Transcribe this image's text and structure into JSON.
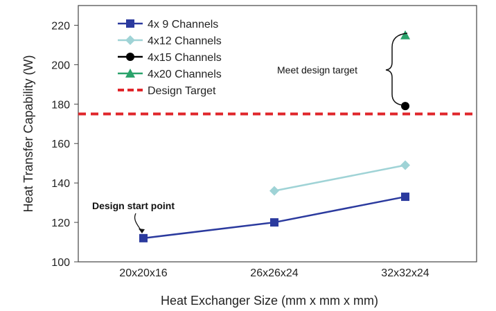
{
  "chart_data": {
    "type": "line",
    "title": "",
    "xlabel": "Heat Exchanger Size (mm x mm x mm)",
    "ylabel": "Heat Transfer Capability (W)",
    "categories": [
      "20x20x16",
      "26x26x24",
      "32x32x24"
    ],
    "ylim": [
      100,
      230
    ],
    "yticks": [
      100,
      120,
      140,
      160,
      180,
      200,
      220
    ],
    "grid": false,
    "legend_position": "top-left",
    "series": [
      {
        "name": "4x 9 Channels",
        "values": [
          112,
          120,
          133
        ],
        "color": "#2b3a9e",
        "marker": "square"
      },
      {
        "name": "4x12 Channels",
        "values": [
          null,
          136,
          149
        ],
        "color": "#9fd3d6",
        "marker": "diamond"
      },
      {
        "name": "4x15 Channels",
        "values": [
          null,
          null,
          179
        ],
        "color": "#000000",
        "marker": "circle"
      },
      {
        "name": "4x20 Channels",
        "values": [
          null,
          null,
          215
        ],
        "color": "#2aa36b",
        "marker": "triangle"
      }
    ],
    "reference_line": {
      "name": "Design Target",
      "value": 175,
      "color": "#e0262b",
      "style": "dashed"
    },
    "annotations": {
      "start": "Design start point",
      "target": "Meet design target"
    }
  }
}
